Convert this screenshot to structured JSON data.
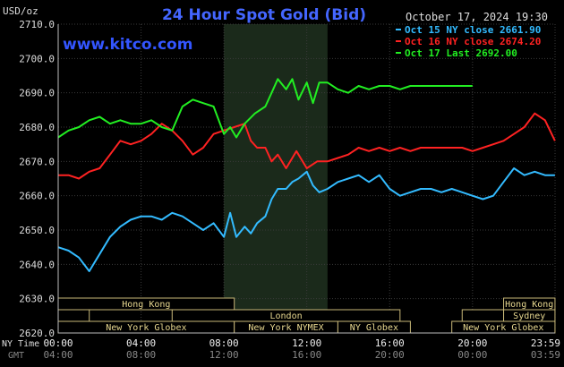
{
  "chart_data": {
    "type": "line",
    "title": "24 Hour Spot Gold (Bid)",
    "ylabel": "USD/oz",
    "date_label": "October 17, 2024 19:30",
    "watermark": "www.kitco.com",
    "ylim": [
      2620,
      2710
    ],
    "y_ticks": [
      "2710.0",
      "2700.0",
      "2690.0",
      "2680.0",
      "2670.0",
      "2660.0",
      "2650.0",
      "2640.0",
      "2630.0",
      "2620.0"
    ],
    "x_row_label_ny": "NY Time",
    "x_row_label_gmt": "GMT",
    "x_ticks_ny": [
      "00:00",
      "04:00",
      "08:00",
      "12:00",
      "16:00",
      "20:00",
      "23:59"
    ],
    "x_ticks_gmt": [
      "04:00",
      "08:00",
      "12:00",
      "16:00",
      "20:00",
      "00:00",
      "03:59"
    ],
    "x_ticks_hours": [
      0,
      4,
      8,
      12,
      16,
      20,
      23.983
    ],
    "highlight_hours": [
      8,
      13
    ],
    "series": [
      {
        "name": "Oct 15 NY close 2661.90",
        "color": "#33bbff",
        "x": [
          0,
          0.5,
          1,
          1.5,
          2,
          2.5,
          3,
          3.5,
          4,
          4.5,
          5,
          5.5,
          6,
          6.5,
          7,
          7.5,
          8,
          8.3,
          8.6,
          9,
          9.3,
          9.6,
          10,
          10.3,
          10.6,
          11,
          11.3,
          11.6,
          12,
          12.3,
          12.6,
          13,
          13.5,
          14,
          14.5,
          15,
          15.5,
          16,
          16.5,
          17,
          17.5,
          18,
          18.5,
          19,
          19.5,
          20,
          20.5,
          21,
          21.5,
          22,
          22.5,
          23,
          23.5,
          23.98
        ],
        "values": [
          2645,
          2644,
          2642,
          2638,
          2643,
          2648,
          2651,
          2653,
          2654,
          2654,
          2653,
          2655,
          2654,
          2652,
          2650,
          2652,
          2648,
          2655,
          2648,
          2651,
          2649,
          2652,
          2654,
          2659,
          2662,
          2662,
          2664,
          2665,
          2667,
          2663,
          2661,
          2662,
          2664,
          2665,
          2666,
          2664,
          2666,
          2662,
          2660,
          2661,
          2662,
          2662,
          2661,
          2662,
          2661,
          2660,
          2659,
          2660,
          2664,
          2668,
          2666,
          2667,
          2666,
          2666
        ]
      },
      {
        "name": "Oct 16 NY close 2674.20",
        "color": "#ff2222",
        "x": [
          0,
          0.5,
          1,
          1.5,
          2,
          2.5,
          3,
          3.5,
          4,
          4.5,
          5,
          5.5,
          6,
          6.5,
          7,
          7.5,
          8,
          8.5,
          9,
          9.3,
          9.6,
          10,
          10.3,
          10.6,
          11,
          11.5,
          12,
          12.5,
          13,
          13.5,
          14,
          14.5,
          15,
          15.5,
          16,
          16.5,
          17,
          17.5,
          18,
          18.5,
          19,
          19.5,
          20,
          20.5,
          21,
          21.5,
          22,
          22.5,
          23,
          23.5,
          23.98
        ],
        "values": [
          2666,
          2666,
          2665,
          2667,
          2668,
          2672,
          2676,
          2675,
          2676,
          2678,
          2681,
          2679,
          2676,
          2672,
          2674,
          2678,
          2679,
          2680,
          2681,
          2676,
          2674,
          2674,
          2670,
          2672,
          2668,
          2673,
          2668,
          2670,
          2670,
          2671,
          2672,
          2674,
          2673,
          2674,
          2673,
          2674,
          2673,
          2674,
          2674,
          2674,
          2674,
          2674,
          2673,
          2674,
          2675,
          2676,
          2678,
          2680,
          2684,
          2682,
          2676
        ]
      },
      {
        "name": "Oct 17 Last 2692.00",
        "color": "#22ee22",
        "x": [
          0,
          0.5,
          1,
          1.5,
          2,
          2.5,
          3,
          3.5,
          4,
          4.5,
          5,
          5.5,
          6,
          6.5,
          7,
          7.5,
          8,
          8.3,
          8.6,
          9,
          9.5,
          10,
          10.3,
          10.6,
          11,
          11.3,
          11.6,
          12,
          12.3,
          12.6,
          13,
          13.5,
          14,
          14.5,
          15,
          15.5,
          16,
          16.5,
          17,
          17.5,
          18,
          18.5,
          19,
          19.5,
          20
        ],
        "values": [
          2677,
          2679,
          2680,
          2682,
          2683,
          2681,
          2682,
          2681,
          2681,
          2682,
          2680,
          2679,
          2686,
          2688,
          2687,
          2686,
          2678,
          2680,
          2677,
          2681,
          2684,
          2686,
          2690,
          2694,
          2691,
          2694,
          2688,
          2693,
          2687,
          2693,
          2693,
          2691,
          2690,
          2692,
          2691,
          2692,
          2692,
          2691,
          2692,
          2692,
          2692,
          2692,
          2692,
          2692,
          2692
        ]
      }
    ],
    "market_rows": [
      [
        {
          "label": "Hong Kong",
          "start": 0,
          "end": 8.5
        },
        {
          "label": "Hong Kong",
          "start": 21.5,
          "end": 23.98
        }
      ],
      [
        {
          "label": "",
          "start": 0,
          "end": 1.5
        },
        {
          "label": "London",
          "start": 5.5,
          "end": 16.5
        },
        {
          "label": "",
          "start": 19.5,
          "end": 21.5
        },
        {
          "label": "Sydney",
          "start": 21.5,
          "end": 23.98
        }
      ],
      [
        {
          "label": "",
          "start": 0,
          "end": 4
        },
        {
          "label": "New York Globex",
          "start": 0,
          "end": 8.5
        },
        {
          "label": "New York NYMEX",
          "start": 8.5,
          "end": 13.5
        },
        {
          "label": "NY Globex",
          "start": 13.5,
          "end": 17
        },
        {
          "label": "New York Globex",
          "start": 19,
          "end": 23.98
        }
      ]
    ]
  }
}
